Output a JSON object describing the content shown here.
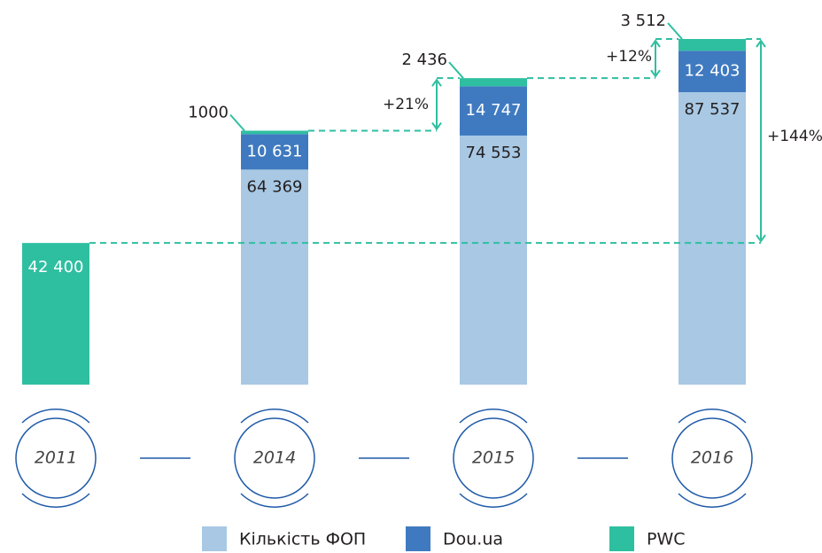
{
  "chart_data": {
    "type": "stacked_bar",
    "categories": [
      "2011",
      "2014",
      "2015",
      "2016"
    ],
    "series": [
      {
        "name": "Кількість ФОП",
        "color": "#a8c8e4",
        "values": [
          null,
          64369,
          74553,
          87537
        ],
        "value_labels": [
          null,
          "64 369",
          "74 553",
          "87 537"
        ]
      },
      {
        "name": "Dou.ua",
        "color": "#3f7ac0",
        "values": [
          null,
          10631,
          14747,
          12403
        ],
        "value_labels": [
          null,
          "10 631",
          "14 747",
          "12 403"
        ]
      },
      {
        "name": "PWC",
        "color": "#2ebfa0",
        "values": [
          42400,
          1000,
          2436,
          3512
        ],
        "value_labels": [
          "42 400",
          "1000",
          "2 436",
          "3 512"
        ]
      }
    ],
    "annotations": [
      {
        "text": "+21%"
      },
      {
        "text": "+12%"
      },
      {
        "text": "+144%"
      }
    ]
  }
}
